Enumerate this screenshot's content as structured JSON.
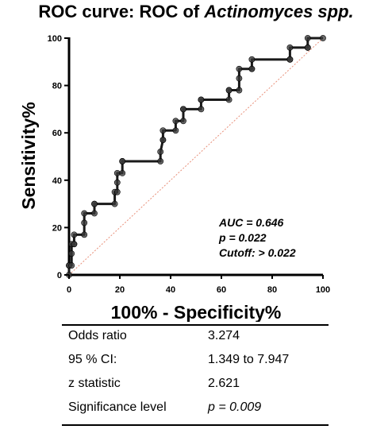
{
  "title_prefix": "ROC curve: ROC of ",
  "title_organism": "Actinomyces spp.",
  "chart_data": {
    "type": "line",
    "xlabel": "100% - Specificity%",
    "ylabel": "Sensitivity%",
    "xlim": [
      0,
      100
    ],
    "ylim": [
      0,
      100
    ],
    "x_ticks": [
      "0",
      "20",
      "40",
      "60",
      "80",
      "100"
    ],
    "y_ticks": [
      "0",
      "20",
      "40",
      "60",
      "80",
      "100"
    ],
    "grid": false,
    "reference_line_color": "#e8907a",
    "curve_color": "#1a1a1a",
    "series": [
      {
        "x": [
          0,
          0,
          0,
          1,
          1,
          1,
          2,
          2,
          2,
          6,
          6,
          6,
          10,
          10,
          10,
          18,
          18,
          19,
          19,
          19,
          21,
          21,
          21,
          36,
          36,
          37,
          37,
          37,
          42,
          42,
          45,
          45,
          45,
          52,
          52,
          52,
          63,
          63,
          63,
          67,
          67,
          67,
          72,
          72,
          72,
          87,
          87,
          87,
          94,
          94,
          94,
          100
        ],
        "y": [
          0,
          4,
          4,
          4,
          9,
          13,
          13,
          13,
          17,
          17,
          22,
          26,
          26,
          30,
          30,
          30,
          35,
          35,
          39,
          43,
          43,
          48,
          48,
          48,
          52,
          57,
          57,
          61,
          61,
          65,
          65,
          70,
          70,
          70,
          74,
          74,
          74,
          78,
          78,
          78,
          83,
          87,
          87,
          87,
          91,
          91,
          91,
          96,
          96,
          96,
          100,
          100
        ]
      }
    ],
    "annotations": {
      "auc": "AUC = 0.646",
      "p": "p = 0.022",
      "cutoff": "Cutoff: > 0.022"
    }
  },
  "table": [
    {
      "label": "Odds ratio",
      "value": "3.274",
      "italic": false
    },
    {
      "label": "95 % CI:",
      "value": "1.349 to 7.947",
      "italic": false
    },
    {
      "label": "z statistic",
      "value": "2.621",
      "italic": false
    },
    {
      "label": "Significance level",
      "value": "p = 0.009",
      "italic": true
    }
  ]
}
